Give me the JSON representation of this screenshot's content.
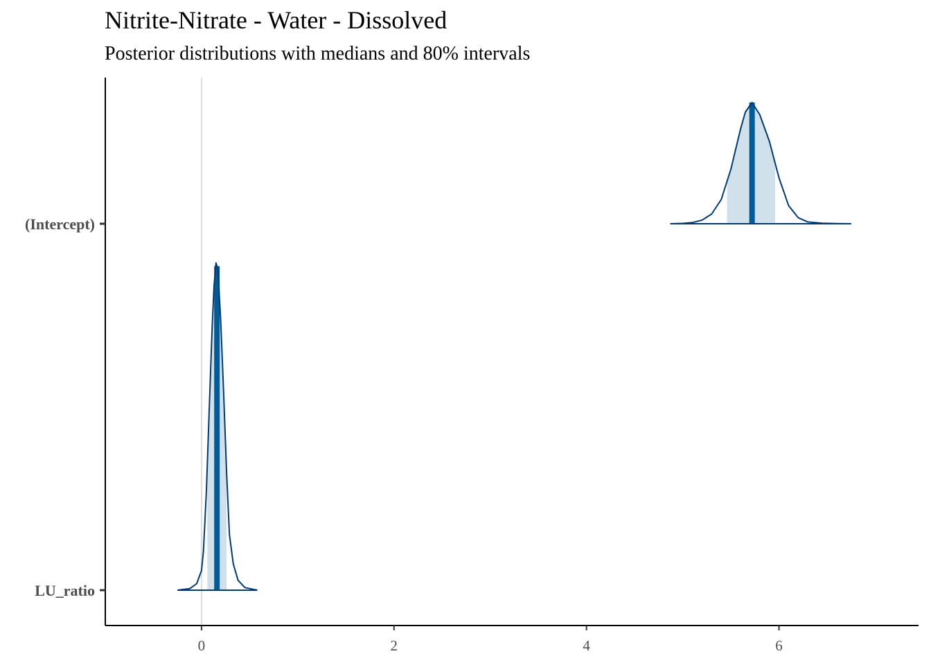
{
  "chart_data": {
    "type": "area",
    "title": "Nitrite-Nitrate - Water - Dissolved",
    "subtitle": "Posterior distributions with medians and 80% intervals",
    "xlabel": "",
    "ylabel": "",
    "xlim": [
      -1.0,
      7.45
    ],
    "x_ticks": [
      0,
      2,
      4,
      6
    ],
    "x_tick_labels": [
      "0",
      "2",
      "4",
      "6"
    ],
    "reference_line_x": 0,
    "grid": false,
    "params": [
      {
        "name": "(Intercept)",
        "median": 5.72,
        "interval_80": [
          5.46,
          5.96
        ],
        "range": [
          4.87,
          6.75
        ],
        "relative_height": 1.0,
        "density": [
          [
            4.87,
            0.0
          ],
          [
            5.0,
            0.003
          ],
          [
            5.1,
            0.01
          ],
          [
            5.2,
            0.03
          ],
          [
            5.3,
            0.08
          ],
          [
            5.4,
            0.2
          ],
          [
            5.5,
            0.45
          ],
          [
            5.6,
            0.78
          ],
          [
            5.65,
            0.92
          ],
          [
            5.72,
            1.0
          ],
          [
            5.8,
            0.9
          ],
          [
            5.9,
            0.68
          ],
          [
            6.0,
            0.38
          ],
          [
            6.1,
            0.15
          ],
          [
            6.2,
            0.05
          ],
          [
            6.3,
            0.015
          ],
          [
            6.45,
            0.004
          ],
          [
            6.6,
            0.001
          ],
          [
            6.75,
            0.0
          ]
        ]
      },
      {
        "name": "LU_ratio",
        "median": 0.16,
        "interval_80": [
          0.06,
          0.26
        ],
        "range": [
          -0.25,
          0.58
        ],
        "relative_height": 2.7,
        "density": [
          [
            -0.25,
            0.0
          ],
          [
            -0.12,
            0.005
          ],
          [
            -0.05,
            0.02
          ],
          [
            0.0,
            0.06
          ],
          [
            0.02,
            0.12
          ],
          [
            0.05,
            0.3
          ],
          [
            0.08,
            0.55
          ],
          [
            0.11,
            0.8
          ],
          [
            0.13,
            0.93
          ],
          [
            0.15,
            1.0
          ],
          [
            0.17,
            0.98
          ],
          [
            0.2,
            0.82
          ],
          [
            0.23,
            0.6
          ],
          [
            0.26,
            0.36
          ],
          [
            0.29,
            0.17
          ],
          [
            0.33,
            0.08
          ],
          [
            0.38,
            0.03
          ],
          [
            0.45,
            0.008
          ],
          [
            0.58,
            0.0
          ]
        ]
      }
    ],
    "colors": {
      "outline": "#03396c",
      "interval_fill": "#d1e1ec",
      "median_line": "#005b96",
      "reference_line": "#dddddd",
      "axis": "#000000"
    }
  }
}
